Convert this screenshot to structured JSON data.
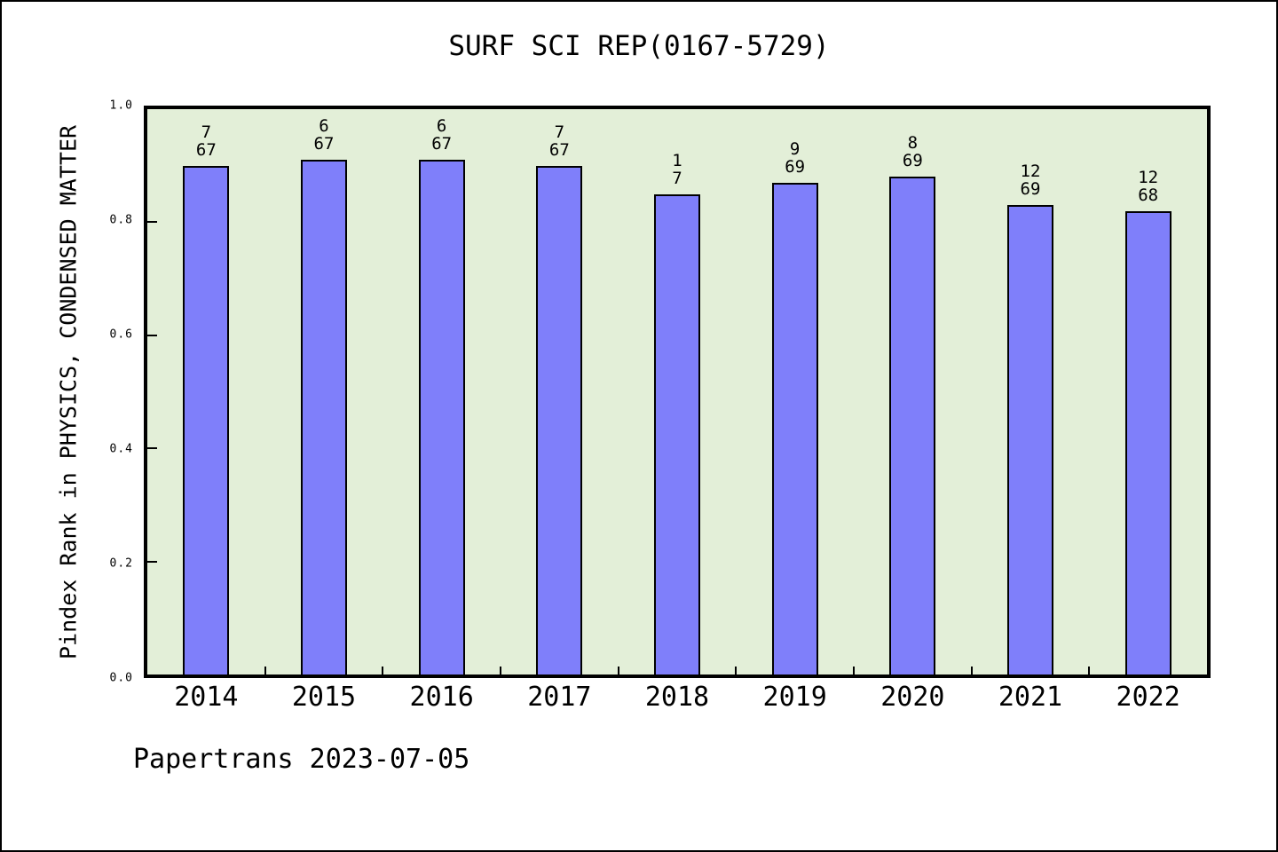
{
  "chart_data": {
    "type": "bar",
    "title": "SURF SCI REP(0167-5729)",
    "ylabel": "Pindex Rank in PHYSICS, CONDENSED MATTER",
    "footer": "Papertrans 2023-07-05",
    "categories": [
      "2014",
      "2015",
      "2016",
      "2017",
      "2018",
      "2019",
      "2020",
      "2021",
      "2022"
    ],
    "values": [
      0.9,
      0.91,
      0.91,
      0.9,
      0.85,
      0.87,
      0.88,
      0.83,
      0.82
    ],
    "bar_labels": [
      {
        "rank": "7",
        "total": "67"
      },
      {
        "rank": "6",
        "total": "67"
      },
      {
        "rank": "6",
        "total": "67"
      },
      {
        "rank": "7",
        "total": "67"
      },
      {
        "rank": "1",
        "total": "7"
      },
      {
        "rank": "9",
        "total": "69"
      },
      {
        "rank": "8",
        "total": "69"
      },
      {
        "rank": "12",
        "total": "69"
      },
      {
        "rank": "12",
        "total": "68"
      }
    ],
    "ylim": [
      0.0,
      1.0
    ],
    "ytick_labels": [
      "0.0",
      "0.2",
      "0.4",
      "0.6",
      "0.8",
      "1.0"
    ],
    "ytick_values": [
      0.0,
      0.2,
      0.4,
      0.6,
      0.8,
      1.0
    ],
    "grid": "off",
    "legend": "none",
    "colors": {
      "bar_fill": "#7f7ffa",
      "bar_border": "#000000",
      "plot_background": "#e3efd8",
      "page_background": "#ffffff",
      "text": "#000000"
    }
  }
}
